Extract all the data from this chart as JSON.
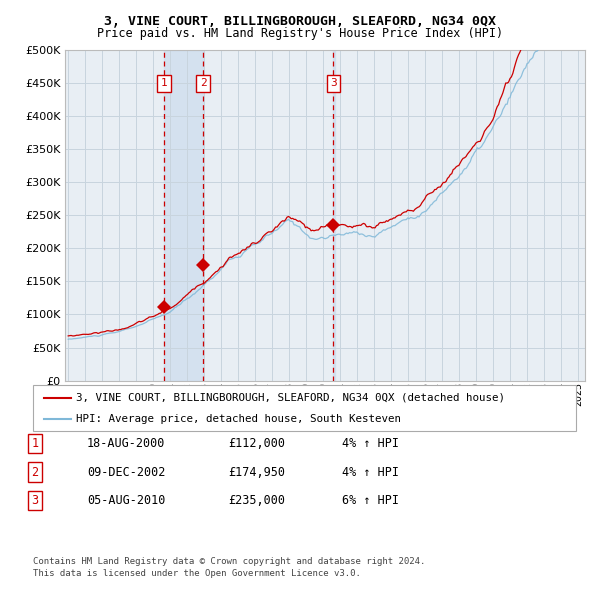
{
  "title1": "3, VINE COURT, BILLINGBOROUGH, SLEAFORD, NG34 0QX",
  "title2": "Price paid vs. HM Land Registry's House Price Index (HPI)",
  "legend_line1": "3, VINE COURT, BILLINGBOROUGH, SLEAFORD, NG34 0QX (detached house)",
  "legend_line2": "HPI: Average price, detached house, South Kesteven",
  "transactions": [
    {
      "num": 1,
      "date": "18-AUG-2000",
      "price": 112000,
      "year": 2000.63,
      "pct": "4%",
      "dir": "↑"
    },
    {
      "num": 2,
      "date": "09-DEC-2002",
      "price": 174950,
      "year": 2002.94,
      "pct": "4%",
      "dir": "↑"
    },
    {
      "num": 3,
      "date": "05-AUG-2010",
      "price": 235000,
      "year": 2010.6,
      "pct": "6%",
      "dir": "↑"
    }
  ],
  "footnote1": "Contains HM Land Registry data © Crown copyright and database right 2024.",
  "footnote2": "This data is licensed under the Open Government Licence v3.0.",
  "hpi_color": "#7fb8d8",
  "price_color": "#cc0000",
  "bg_color": "#e8eef4",
  "grid_color": "#c8d4de",
  "ylim": [
    0,
    500000
  ],
  "yticks": [
    0,
    50000,
    100000,
    150000,
    200000,
    250000,
    300000,
    350000,
    400000,
    450000,
    500000
  ],
  "xlim_start": 1994.8,
  "xlim_end": 2025.4,
  "shade_color": "#ccdcee",
  "marker_size": 7
}
